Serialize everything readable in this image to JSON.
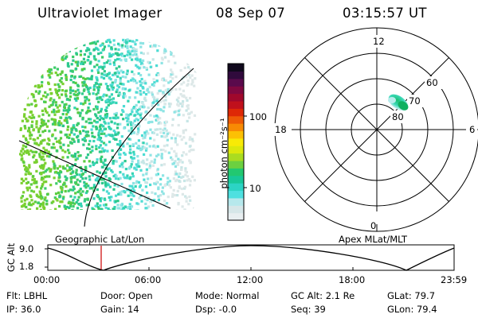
{
  "header": {
    "title": "Ultraviolet Imager",
    "date": "08 Sep 07",
    "time": "03:15:57 UT"
  },
  "panel_labels": {
    "left": "Geographic Lat/Lon",
    "right": "Apex MLat/MLT"
  },
  "colorbar": {
    "unit_label": "photon cm⁻²s⁻¹",
    "tick_labels": [
      "100",
      "10"
    ],
    "colors": [
      "#e8eef0",
      "#d6e6e8",
      "#b6e8ec",
      "#4ee0e0",
      "#2cd4c4",
      "#18c898",
      "#22c870",
      "#6cd040",
      "#aadc20",
      "#dce80c",
      "#f8ea06",
      "#fcc004",
      "#f88a04",
      "#ee5a06",
      "#de2806",
      "#c0101c",
      "#a0082c",
      "#800840",
      "#5a0a4c",
      "#300a3c",
      "#10081c"
    ]
  },
  "polar": {
    "mlt_labels": [
      "12",
      "18",
      "6",
      "0"
    ],
    "lat_labels": [
      "60",
      "70",
      "80"
    ]
  },
  "alt_plot": {
    "ylabel": "GC Alt",
    "y_ticks": [
      "9.0",
      "1.8"
    ],
    "x_ticks": [
      "00:00",
      "06:00",
      "12:00",
      "18:00",
      "23:59"
    ]
  },
  "info": {
    "flt": "Flt: LBHL",
    "ip": "IP: 36.0",
    "door": "Door: Open",
    "gain": "Gain: 14",
    "mode": "Mode: Normal",
    "dsp": "Dsp:   -0.0",
    "gc_alt": "GC Alt: 2.1 Re",
    "seq": "Seq: 39",
    "glat": "GLat:  79.7",
    "glon": "GLon:  79.4"
  }
}
